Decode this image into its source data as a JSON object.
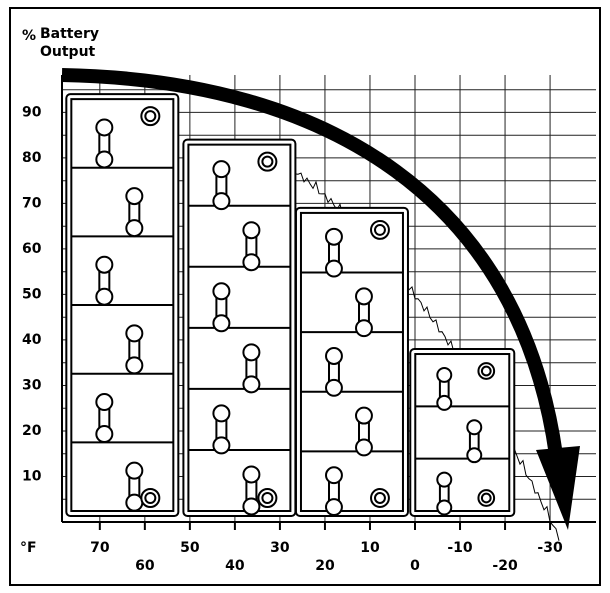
{
  "chart_data": {
    "type": "bar",
    "y_symbol": "%",
    "y_label_lines": [
      "Battery",
      "Output"
    ],
    "x_label": "°F",
    "x": [
      65,
      39,
      14,
      -10.5
    ],
    "values": [
      94,
      84,
      69,
      38
    ],
    "color": "#ffffff",
    "xlim": [
      78.4,
      -40.2
    ],
    "xticks": [
      70,
      60,
      50,
      40,
      30,
      20,
      10,
      0,
      -10,
      -20,
      -30
    ],
    "ylim": [
      0,
      98.2
    ],
    "yticks": [
      10,
      20,
      30,
      40,
      50,
      60,
      70,
      80,
      90
    ],
    "grid": true
  }
}
